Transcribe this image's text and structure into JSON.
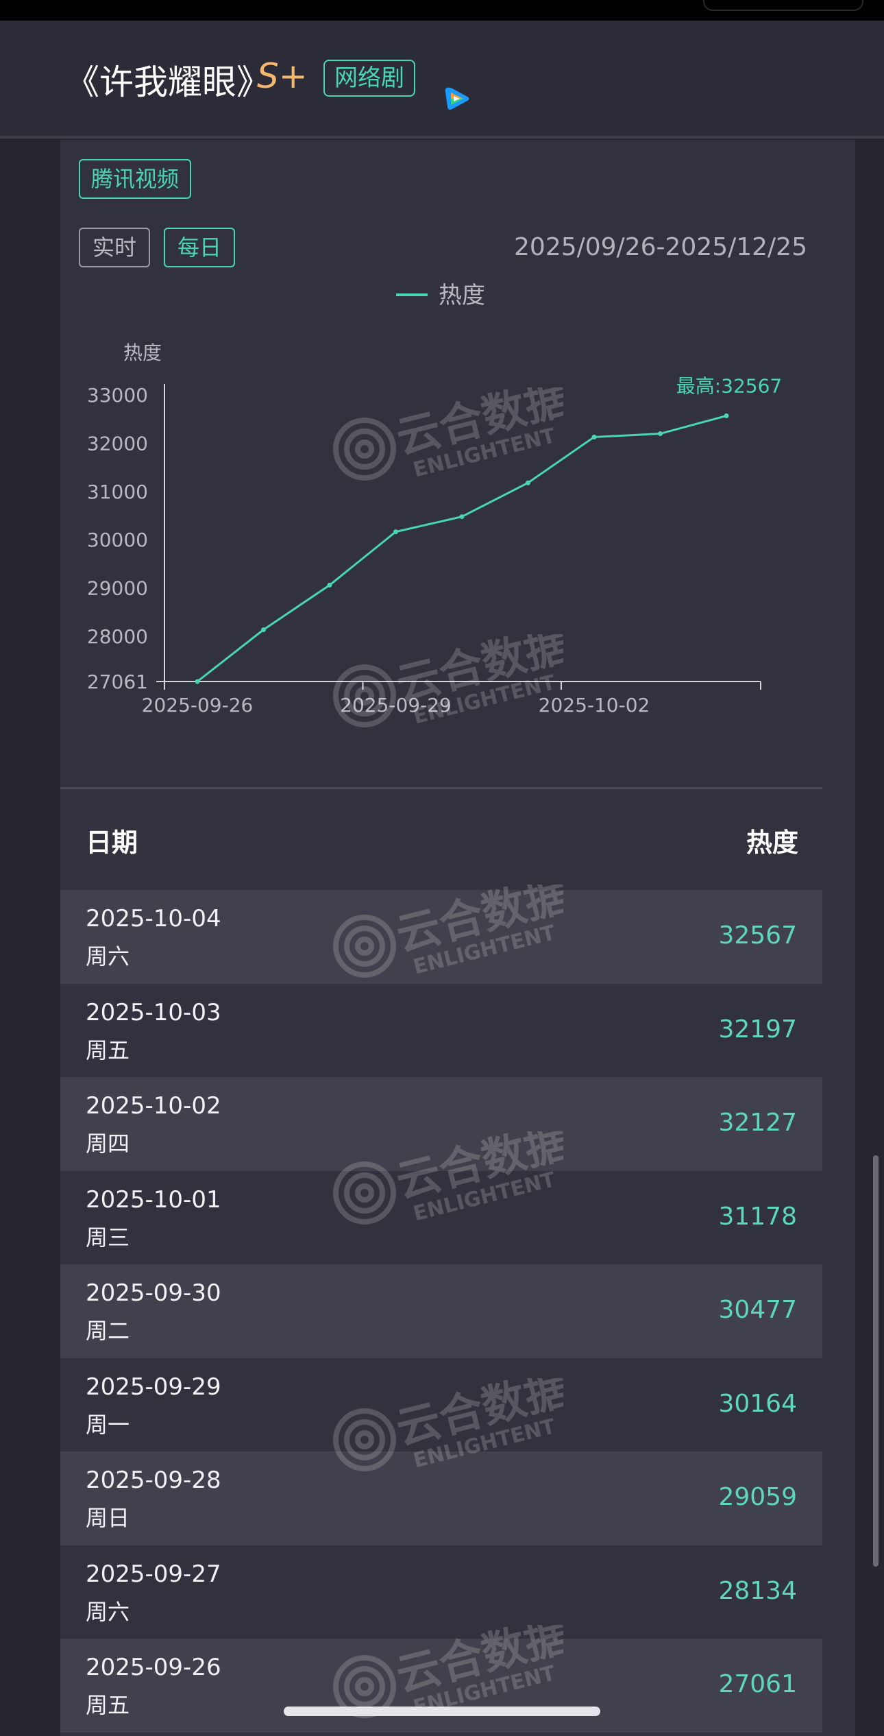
{
  "header": {
    "title": "《许我耀眼》",
    "grade": "S+",
    "genre_tag": "网络剧",
    "platform_icon": "tencent-video-play-icon"
  },
  "panel": {
    "platform_tag": "腾讯视频",
    "tabs": [
      {
        "label": "实时",
        "active": false
      },
      {
        "label": "每日",
        "active": true
      }
    ],
    "date_range": "2025/09/26-2025/12/25"
  },
  "chart_data": {
    "type": "line",
    "legend": "热度",
    "ylabel": "热度",
    "x": [
      "2025-09-26",
      "2025-09-27",
      "2025-09-28",
      "2025-09-29",
      "2025-09-30",
      "2025-10-01",
      "2025-10-02",
      "2025-10-03",
      "2025-10-04"
    ],
    "values": [
      27061,
      28134,
      29059,
      30164,
      30477,
      31178,
      32127,
      32197,
      32567
    ],
    "yticks": [
      "27061",
      "28000",
      "29000",
      "30000",
      "31000",
      "32000",
      "33000"
    ],
    "ylim": [
      27061,
      33000
    ],
    "xtick_labels": [
      "2025-09-26",
      "2025-09-29",
      "2025-10-02"
    ],
    "max_annotation": "最高:32567",
    "line_color": "#49d6b3",
    "legend_placement": "top-center"
  },
  "table": {
    "header_date": "日期",
    "header_heat": "热度",
    "rows": [
      {
        "date": "2025-10-04",
        "weekday": "周六",
        "value": "32567"
      },
      {
        "date": "2025-10-03",
        "weekday": "周五",
        "value": "32197"
      },
      {
        "date": "2025-10-02",
        "weekday": "周四",
        "value": "32127"
      },
      {
        "date": "2025-10-01",
        "weekday": "周三",
        "value": "31178"
      },
      {
        "date": "2025-09-30",
        "weekday": "周二",
        "value": "30477"
      },
      {
        "date": "2025-09-29",
        "weekday": "周一",
        "value": "30164"
      },
      {
        "date": "2025-09-28",
        "weekday": "周日",
        "value": "29059"
      },
      {
        "date": "2025-09-27",
        "weekday": "周六",
        "value": "28134"
      },
      {
        "date": "2025-09-26",
        "weekday": "周五",
        "value": "27061"
      }
    ]
  },
  "watermark": {
    "brand": "云合数据",
    "brand_en": "ENLIGHTENT"
  },
  "colors": {
    "accent": "#49d6b3",
    "grade": "#f5b66e",
    "background": "#252630",
    "panel": "#31323e"
  }
}
